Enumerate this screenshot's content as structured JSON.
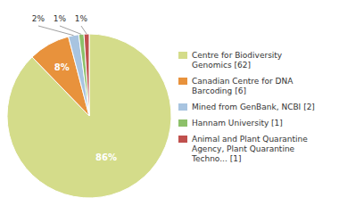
{
  "chart_data": {
    "type": "pie",
    "categories": [
      "Centre for Biodiversity\nGenomics [62]",
      "Canadian Centre for DNA\nBarcoding [6]",
      "Mined from GenBank, NCBI [2]",
      "Hannam University [1]",
      "Animal and Plant Quarantine\nAgency, Plant Quarantine\nTechno... [1]"
    ],
    "values": [
      86,
      8,
      2,
      1,
      1
    ],
    "value_labels": [
      "86%",
      "8%",
      "2%",
      "1%",
      "1%"
    ],
    "colors": [
      "#d4dc8a",
      "#e8923c",
      "#a8c4e0",
      "#8dc06a",
      "#c0504d"
    ],
    "data_labels": true,
    "legend": "right"
  }
}
